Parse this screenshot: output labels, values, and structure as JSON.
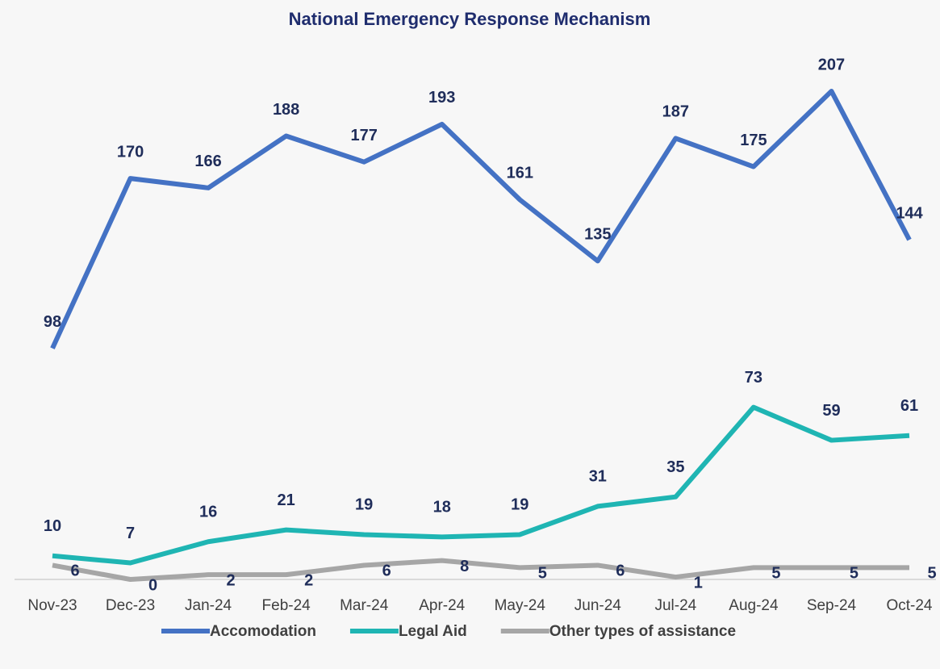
{
  "chart_data": {
    "type": "line",
    "title": "National Emergency Response Mechanism",
    "categories": [
      "Nov-23",
      "Dec-23",
      "Jan-24",
      "Feb-24",
      "Mar-24",
      "Apr-24",
      "May-24",
      "Jun-24",
      "Jul-24",
      "Aug-24",
      "Sep-24",
      "Oct-24"
    ],
    "series": [
      {
        "name": "Accomodation",
        "color": "#4472c4",
        "values": [
          98,
          170,
          166,
          188,
          177,
          193,
          161,
          135,
          187,
          175,
          207,
          144
        ]
      },
      {
        "name": "Legal Aid",
        "color": "#1fb5b3",
        "values": [
          10,
          7,
          16,
          21,
          19,
          18,
          19,
          31,
          35,
          73,
          59,
          61
        ]
      },
      {
        "name": "Other types of assistance",
        "color": "#a6a6a6",
        "values": [
          6,
          0,
          2,
          2,
          6,
          8,
          5,
          6,
          1,
          5,
          5,
          5
        ]
      }
    ]
  }
}
